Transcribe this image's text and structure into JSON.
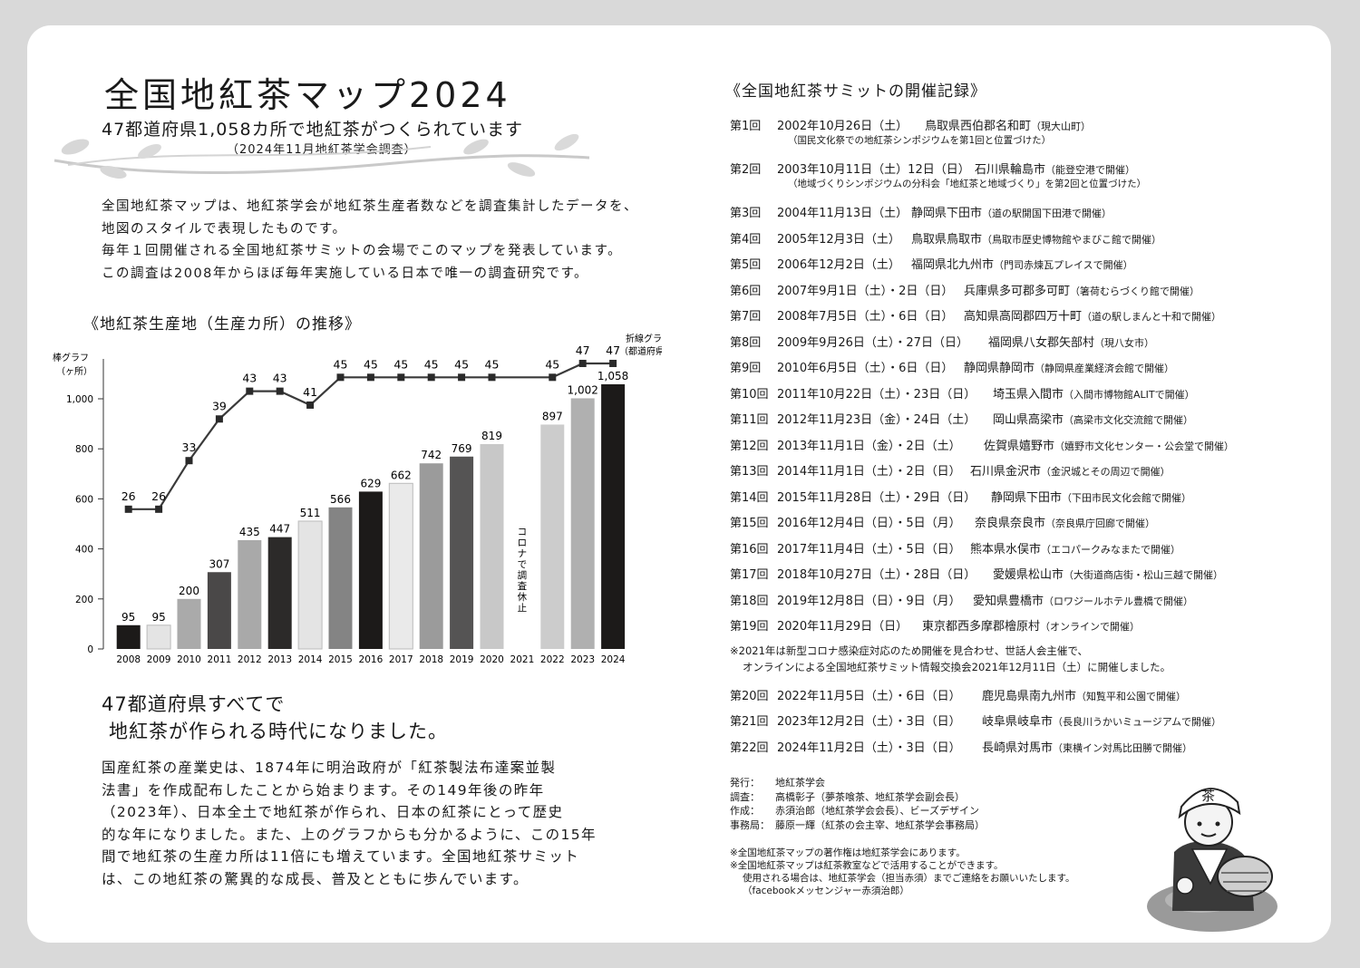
{
  "title": "全国地紅茶マップ2024",
  "subtitle": "47都道府県1,058カ所で地紅茶がつくられています",
  "survey_note": "（2024年11月地紅茶学会調査）",
  "intro": [
    "全国地紅茶マップは、地紅茶学会が地紅茶生産者数などを調査集計したデータを、",
    "地図のスタイルで表現したものです。",
    "毎年１回開催される全国地紅茶サミットの会場でこのマップを発表しています。",
    "この調査は2008年からほぼ毎年実施している日本で唯一の調査研究です。"
  ],
  "chart_heading": "《地紅茶生産地（生産カ所）の推移》",
  "chart_data": {
    "type": "bar",
    "title": "",
    "categories": [
      "2008",
      "2009",
      "2010",
      "2011",
      "2012",
      "2013",
      "2014",
      "2015",
      "2016",
      "2017",
      "2018",
      "2019",
      "2020",
      "2021",
      "2022",
      "2023",
      "2024"
    ],
    "series": [
      {
        "name": "棒グラフ（ヶ所）",
        "type": "bar",
        "values": [
          95,
          95,
          200,
          307,
          435,
          447,
          511,
          566,
          629,
          662,
          742,
          769,
          819,
          null,
          897,
          1002,
          1058
        ]
      },
      {
        "name": "折線グラフ（都道府県数）",
        "type": "line",
        "values": [
          26,
          26,
          33,
          39,
          43,
          43,
          41,
          45,
          45,
          45,
          45,
          45,
          45,
          null,
          45,
          47,
          47
        ]
      }
    ],
    "bar_labels": [
      "95",
      "95",
      "200",
      "307",
      "435",
      "447",
      "511",
      "566",
      "629",
      "662",
      "742",
      "769",
      "819",
      "",
      "897",
      "1,002",
      "1,058"
    ],
    "bar_colors": [
      "#1c1a19",
      "#e4e4e4",
      "#aaaaaa",
      "#4a4848",
      "#a9a9a9",
      "#2c2a29",
      "#e4e4e4",
      "#848484",
      "#1c1a19",
      "#eaeaea",
      "#9b9b9b",
      "#555454",
      "#c8c8c8",
      "",
      "#cccccc",
      "#b0b0b0",
      "#1c1a19"
    ],
    "yticks": [
      0,
      200,
      400,
      600,
      800,
      1000
    ],
    "ytick_labels": [
      "0",
      "200",
      "400",
      "600",
      "800",
      "1,000"
    ],
    "ylim": [
      0,
      1100
    ],
    "line_range": [
      15,
      50
    ],
    "bar_axis_label": [
      "棒グラフ",
      "（ヶ所）"
    ],
    "line_legend": [
      "折線グラフ",
      "（都道府県数）"
    ],
    "annotation_2021": "コロナで調査休止"
  },
  "section_heading": [
    "47都道府県すべてで",
    "地紅茶が作られる時代になりました。"
  ],
  "body_text": [
    "国産紅茶の産業史は、1874年に明治政府が「紅茶製法布達案並製",
    "法書」を作成配布したことから始まります。その149年後の昨年",
    "（2023年）、日本全土で地紅茶が作られ、日本の紅茶にとって歴史",
    "的な年になりました。また、上のグラフからも分かるように、この15年",
    "間で地紅茶の生産カ所は11倍にも増えています。全国地紅茶サミット",
    "は、この地紅茶の驚異的な成長、普及とともに歩んでいます。"
  ],
  "summit_heading": "《全国地紅茶サミットの開催記録》",
  "summits": [
    {
      "no": "第1回",
      "date": "2002年10月26日（土）",
      "place": "鳥取県西伯郡名和町",
      "place_note": "（現大山町）",
      "note": "（国民文化祭での地紅茶シンポジウムを第1回と位置づけた）"
    },
    {
      "no": "第2回",
      "date": "2003年10月11日（土）12日（日）",
      "place": "石川県輪島市",
      "place_note": "（能登空港で開催）",
      "note": "（地域づくりシンポジウムの分科会「地紅茶と地域づくり」を第2回と位置づけた）"
    },
    {
      "no": "第3回",
      "date": "2004年11月13日（土）",
      "place": "静岡県下田市",
      "place_note": "（道の駅開国下田港で開催）"
    },
    {
      "no": "第4回",
      "date": "2005年12月3日（土）",
      "place": "鳥取県鳥取市",
      "place_note": "（鳥取市歴史博物館やまびこ館で開催）"
    },
    {
      "no": "第5回",
      "date": "2006年12月2日（土）",
      "place": "福岡県北九州市",
      "place_note": "（門司赤煉瓦プレイスで開催）"
    },
    {
      "no": "第6回",
      "date": "2007年9月1日（土）・2日（日）",
      "place": "兵庫県多可郡多可町",
      "place_note": "（箸荷むらづくり館で開催）"
    },
    {
      "no": "第7回",
      "date": "2008年7月5日（土）・6日（日）",
      "place": "高知県高岡郡四万十町",
      "place_note": "（道の駅しまんと十和で開催）"
    },
    {
      "no": "第8回",
      "date": "2009年9月26日（土）・27日（日）",
      "place": "福岡県八女郡矢部村",
      "place_note": "（現八女市）"
    },
    {
      "no": "第9回",
      "date": "2010年6月5日（土）・6日（日）",
      "place": "静岡県静岡市",
      "place_note": "（静岡県産業経済会館で開催）"
    },
    {
      "no": "第10回",
      "date": "2011年10月22日（土）・23日（日）",
      "place": "埼玉県入間市",
      "place_note": "（入間市博物館ALITで開催）"
    },
    {
      "no": "第11回",
      "date": "2012年11月23日（金）・24日（土）",
      "place": "岡山県高梁市",
      "place_note": "（高梁市文化交流館で開催）"
    },
    {
      "no": "第12回",
      "date": "2013年11月1日（金）・2日（土）",
      "place": "佐賀県嬉野市",
      "place_note": "（嬉野市文化センター・公会堂で開催）"
    },
    {
      "no": "第13回",
      "date": "2014年11月1日（土）・2日（日）",
      "place": "石川県金沢市",
      "place_note": "（金沢城とその周辺で開催）"
    },
    {
      "no": "第14回",
      "date": "2015年11月28日（土）・29日（日）",
      "place": "静岡県下田市",
      "place_note": "（下田市民文化会館で開催）"
    },
    {
      "no": "第15回",
      "date": "2016年12月4日（日）・5日（月）",
      "place": "奈良県奈良市",
      "place_note": "（奈良県庁回廊で開催）"
    },
    {
      "no": "第16回",
      "date": "2017年11月4日（土）・5日（日）",
      "place": "熊本県水俣市",
      "place_note": "（エコパークみなまたで開催）"
    },
    {
      "no": "第17回",
      "date": "2018年10月27日（土）・28日（日）",
      "place": "愛媛県松山市",
      "place_note": "（大街道商店街・松山三越で開催）"
    },
    {
      "no": "第18回",
      "date": "2019年12月8日（日）・9日（月）",
      "place": "愛知県豊橋市",
      "place_note": "（ロワジールホテル豊橋で開催）"
    },
    {
      "no": "第19回",
      "date": "2020年11月29日（日）",
      "place": "東京都西多摩郡檜原村",
      "place_note": "（オンラインで開催）"
    },
    {
      "no": "第20回",
      "date": "2022年11月5日（土）・6日（日）",
      "place": "鹿児島県南九州市",
      "place_note": "（知覧平和公園で開催）"
    },
    {
      "no": "第21回",
      "date": "2023年12月2日（土）・3日（日）",
      "place": "岐阜県岐阜市",
      "place_note": "（長良川うかいミュージアムで開催）"
    },
    {
      "no": "第22回",
      "date": "2024年11月2日（土）・3日（日）",
      "place": "長崎県対馬市",
      "place_note": "（東横イン対馬比田勝で開催）"
    }
  ],
  "covid_note": [
    "※2021年は新型コロナ感染症対応のため開催を見合わせ、世話人会主催で、",
    "オンラインによる全国地紅茶サミット情報交換会2021年12月11日（土）に開催しました。"
  ],
  "credits": [
    {
      "label": "発行：",
      "value": "地紅茶学会"
    },
    {
      "label": "調査：",
      "value": "高橋彰子（夢茶喰茶、地紅茶学会副会長）"
    },
    {
      "label": "作成：",
      "value": "赤須治郎（地紅茶学会会長）、ビーズデザイン"
    },
    {
      "label": "事務局：",
      "value": "藤原一輝（紅茶の会主宰、地紅茶学会事務局）"
    }
  ],
  "footnotes": [
    "※全国地紅茶マップの著作権は地紅茶学会にあります。",
    "※全国地紅茶マップは紅茶教室などで活用することができます。",
    "使用される場合は、地紅茶学会（担当赤須）までご連絡をお願いいたします。",
    "（facebookメッセンジャー赤須治郎）"
  ],
  "illustration_text": "茶"
}
